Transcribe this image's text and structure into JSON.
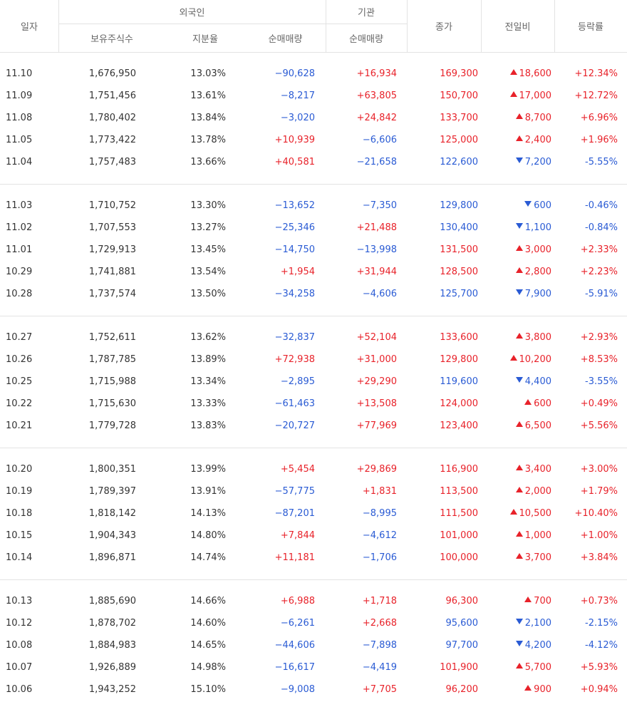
{
  "header": {
    "date": "일자",
    "foreign": "외국인",
    "institution": "기관",
    "close": "종가",
    "change": "전일비",
    "rate": "등락률",
    "holdings": "보유주식수",
    "share": "지분율",
    "foreign_net": "순매매량",
    "inst_net": "순매매량"
  },
  "groups": [
    [
      [
        "11.10",
        "1,676,950",
        "13.03%",
        "−90,628",
        "+16,934",
        "169,300",
        "18,600",
        "+12.34%"
      ],
      [
        "11.09",
        "1,751,456",
        "13.61%",
        "−8,217",
        "+63,805",
        "150,700",
        "17,000",
        "+12.72%"
      ],
      [
        "11.08",
        "1,780,402",
        "13.84%",
        "−3,020",
        "+24,842",
        "133,700",
        "8,700",
        "+6.96%"
      ],
      [
        "11.05",
        "1,773,422",
        "13.78%",
        "+10,939",
        "−6,606",
        "125,000",
        "2,400",
        "+1.96%"
      ],
      [
        "11.04",
        "1,757,483",
        "13.66%",
        "+40,581",
        "−21,658",
        "122,600",
        "7,200",
        "-5.55%"
      ]
    ],
    [
      [
        "11.03",
        "1,710,752",
        "13.30%",
        "−13,652",
        "−7,350",
        "129,800",
        "600",
        "-0.46%"
      ],
      [
        "11.02",
        "1,707,553",
        "13.27%",
        "−25,346",
        "+21,488",
        "130,400",
        "1,100",
        "-0.84%"
      ],
      [
        "11.01",
        "1,729,913",
        "13.45%",
        "−14,750",
        "−13,998",
        "131,500",
        "3,000",
        "+2.33%"
      ],
      [
        "10.29",
        "1,741,881",
        "13.54%",
        "+1,954",
        "+31,944",
        "128,500",
        "2,800",
        "+2.23%"
      ],
      [
        "10.28",
        "1,737,574",
        "13.50%",
        "−34,258",
        "−4,606",
        "125,700",
        "7,900",
        "-5.91%"
      ]
    ],
    [
      [
        "10.27",
        "1,752,611",
        "13.62%",
        "−32,837",
        "+52,104",
        "133,600",
        "3,800",
        "+2.93%"
      ],
      [
        "10.26",
        "1,787,785",
        "13.89%",
        "+72,938",
        "+31,000",
        "129,800",
        "10,200",
        "+8.53%"
      ],
      [
        "10.25",
        "1,715,988",
        "13.34%",
        "−2,895",
        "+29,290",
        "119,600",
        "4,400",
        "-3.55%"
      ],
      [
        "10.22",
        "1,715,630",
        "13.33%",
        "−61,463",
        "+13,508",
        "124,000",
        "600",
        "+0.49%"
      ],
      [
        "10.21",
        "1,779,728",
        "13.83%",
        "−20,727",
        "+77,969",
        "123,400",
        "6,500",
        "+5.56%"
      ]
    ],
    [
      [
        "10.20",
        "1,800,351",
        "13.99%",
        "+5,454",
        "+29,869",
        "116,900",
        "3,400",
        "+3.00%"
      ],
      [
        "10.19",
        "1,789,397",
        "13.91%",
        "−57,775",
        "+1,831",
        "113,500",
        "2,000",
        "+1.79%"
      ],
      [
        "10.18",
        "1,818,142",
        "14.13%",
        "−87,201",
        "−8,995",
        "111,500",
        "10,500",
        "+10.40%"
      ],
      [
        "10.15",
        "1,904,343",
        "14.80%",
        "+7,844",
        "−4,612",
        "101,000",
        "1,000",
        "+1.00%"
      ],
      [
        "10.14",
        "1,896,871",
        "14.74%",
        "+11,181",
        "−1,706",
        "100,000",
        "3,700",
        "+3.84%"
      ]
    ],
    [
      [
        "10.13",
        "1,885,690",
        "14.66%",
        "+6,988",
        "+1,718",
        "96,300",
        "700",
        "+0.73%"
      ],
      [
        "10.12",
        "1,878,702",
        "14.60%",
        "−6,261",
        "+2,668",
        "95,600",
        "2,100",
        "-2.15%"
      ],
      [
        "10.08",
        "1,884,983",
        "14.65%",
        "−44,606",
        "−7,898",
        "97,700",
        "4,200",
        "-4.12%"
      ],
      [
        "10.07",
        "1,926,889",
        "14.98%",
        "−16,617",
        "−4,419",
        "101,900",
        "5,700",
        "+5.93%"
      ],
      [
        "10.06",
        "1,943,252",
        "15.10%",
        "−9,008",
        "+7,705",
        "96,200",
        "900",
        "+0.94%"
      ]
    ]
  ]
}
